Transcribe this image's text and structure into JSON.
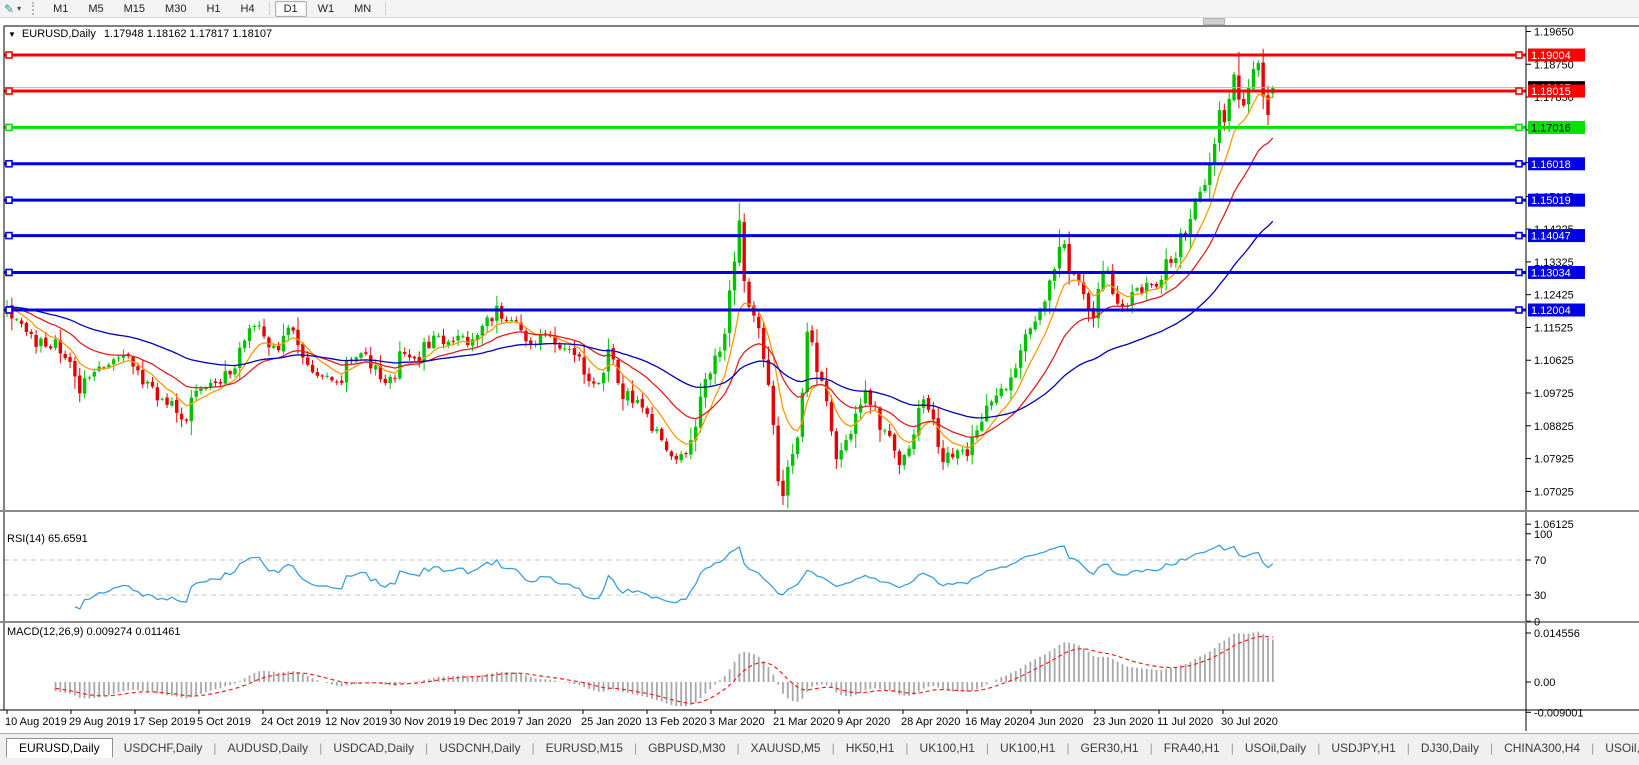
{
  "toolbar": {
    "cursor_glyph": "✎",
    "dropdown_glyph": "▾",
    "timeframes": [
      "M1",
      "M5",
      "M15",
      "M30",
      "H1",
      "H4",
      "D1",
      "W1",
      "MN"
    ],
    "active_timeframe": "D1"
  },
  "chart": {
    "title_marker": "▼",
    "ohlc_text": "1.17948 1.18162 1.17817 1.18107"
  },
  "chart_data": {
    "type": "candlestick",
    "symbol": "EURUSD",
    "timeframe": "Daily",
    "title": "EURUSD,Daily",
    "ohlc_current": {
      "open": "1.17948",
      "high": "1.18162",
      "low": "1.17817",
      "close": "1.18107"
    },
    "x_axis_labels": [
      "10 Aug 2019",
      "29 Aug 2019",
      "17 Sep 2019",
      "5 Oct 2019",
      "24 Oct 2019",
      "12 Nov 2019",
      "30 Nov 2019",
      "19 Dec 2019",
      "7 Jan 2020",
      "25 Jan 2020",
      "13 Feb 2020",
      "3 Mar 2020",
      "21 Mar 2020",
      "9 Apr 2020",
      "28 Apr 2020",
      "16 May 2020",
      "4 Jun 2020",
      "23 Jun 2020",
      "11 Jul 2020",
      "30 Jul 2020"
    ],
    "y_axis_ticks": [
      {
        "label": "1.19650",
        "value": 1.1965
      },
      {
        "label": "1.18750",
        "value": 1.1875
      },
      {
        "label": "1.17850",
        "value": 1.1785
      },
      {
        "label": "1.16950",
        "value": 1.1695
      },
      {
        "label": "1.16050",
        "value": 1.1605
      },
      {
        "label": "1.15125",
        "value": 1.15125
      },
      {
        "label": "1.14225",
        "value": 1.14225
      },
      {
        "label": "1.13325",
        "value": 1.13325
      },
      {
        "label": "1.12425",
        "value": 1.12425
      },
      {
        "label": "1.11525",
        "value": 1.11525
      },
      {
        "label": "1.10625",
        "value": 1.10625
      },
      {
        "label": "1.09725",
        "value": 1.09725
      },
      {
        "label": "1.08825",
        "value": 1.08825
      },
      {
        "label": "1.07925",
        "value": 1.07925
      },
      {
        "label": "1.07025",
        "value": 1.07025
      },
      {
        "label": "1.06125",
        "value": 1.06125
      }
    ],
    "horizontal_lines": [
      {
        "label": "1.19004",
        "value": 1.19004,
        "color": "#ff0000",
        "text_color": "#ffffff"
      },
      {
        "label": "1.18015",
        "value": 1.18015,
        "color": "#ff0000",
        "text_color": "#ffffff"
      },
      {
        "label": "1.17016",
        "value": 1.17016,
        "color": "#00e400",
        "text_color": "#000000"
      },
      {
        "label": "1.16018",
        "value": 1.16018,
        "color": "#0000e6",
        "text_color": "#ffffff"
      },
      {
        "label": "1.15019",
        "value": 1.15019,
        "color": "#0000e6",
        "text_color": "#ffffff"
      },
      {
        "label": "1.14047",
        "value": 1.14047,
        "color": "#0000e6",
        "text_color": "#ffffff"
      },
      {
        "label": "1.13034",
        "value": 1.13034,
        "color": "#0000e6",
        "text_color": "#ffffff"
      },
      {
        "label": "1.12004",
        "value": 1.12004,
        "color": "#0000e6",
        "text_color": "#ffffff"
      }
    ],
    "current_price": {
      "label": "1.18107",
      "value": 1.18107,
      "line_color": "#b4b4b4",
      "badge_color": "#000000"
    },
    "candles": {
      "count": 262,
      "close_waypoints": [
        [
          0,
          1.121
        ],
        [
          2,
          1.1175
        ],
        [
          4,
          1.114
        ],
        [
          8,
          1.11
        ],
        [
          10,
          1.112
        ],
        [
          13,
          1.1058
        ],
        [
          15,
          1.0972
        ],
        [
          18,
          1.103
        ],
        [
          23,
          1.107
        ],
        [
          26,
          1.1045
        ],
        [
          30,
          1.099
        ],
        [
          33,
          1.094
        ],
        [
          36,
          1.09
        ],
        [
          38,
          1.096
        ],
        [
          43,
          1.1
        ],
        [
          47,
          1.104
        ],
        [
          50,
          1.115
        ],
        [
          53,
          1.1128
        ],
        [
          56,
          1.109
        ],
        [
          58,
          1.1152
        ],
        [
          61,
          1.107
        ],
        [
          64,
          1.102
        ],
        [
          68,
          1.1003
        ],
        [
          71,
          1.106
        ],
        [
          74,
          1.108
        ],
        [
          77,
          1.101
        ],
        [
          79,
          1.1017
        ],
        [
          82,
          1.108
        ],
        [
          85,
          1.106
        ],
        [
          88,
          1.113
        ],
        [
          92,
          1.1115
        ],
        [
          96,
          1.112
        ],
        [
          99,
          1.118
        ],
        [
          101,
          1.1212
        ],
        [
          103,
          1.1172
        ],
        [
          107,
          1.1115
        ],
        [
          111,
          1.113
        ],
        [
          115,
          1.1095
        ],
        [
          119,
          1.1023
        ],
        [
          122,
          1.1
        ],
        [
          124,
          1.1093
        ],
        [
          126,
          1.1
        ],
        [
          129,
          1.0945
        ],
        [
          132,
          1.0915
        ],
        [
          135,
          1.0843
        ],
        [
          138,
          1.079
        ],
        [
          140,
          1.0805
        ],
        [
          142,
          1.088
        ],
        [
          145,
          1.1026
        ],
        [
          148,
          1.1135
        ],
        [
          151,
          1.1446
        ],
        [
          152,
          1.128
        ],
        [
          154,
          1.1185
        ],
        [
          156,
          1.1065
        ],
        [
          157,
          1.0995
        ],
        [
          159,
          1.073
        ],
        [
          160,
          1.069
        ],
        [
          161,
          1.077
        ],
        [
          163,
          1.085
        ],
        [
          165,
          1.1141
        ],
        [
          167,
          1.103
        ],
        [
          169,
          1.095
        ],
        [
          171,
          1.0791
        ],
        [
          174,
          1.086
        ],
        [
          177,
          1.098
        ],
        [
          179,
          1.0935
        ],
        [
          181,
          1.087
        ],
        [
          184,
          1.0775
        ],
        [
          186,
          1.082
        ],
        [
          189,
          1.0955
        ],
        [
          191,
          1.09
        ],
        [
          193,
          1.0783
        ],
        [
          196,
          1.0815
        ],
        [
          198,
          1.08
        ],
        [
          200,
          1.087
        ],
        [
          203,
          1.0949
        ],
        [
          206,
          1.0983
        ],
        [
          208,
          1.104
        ],
        [
          210,
          1.1134
        ],
        [
          213,
          1.12
        ],
        [
          217,
          1.1374
        ],
        [
          220,
          1.13
        ],
        [
          222,
          1.1244
        ],
        [
          224,
          1.1177
        ],
        [
          226,
          1.1308
        ],
        [
          229,
          1.1218
        ],
        [
          232,
          1.125
        ],
        [
          234,
          1.1248
        ],
        [
          236,
          1.127
        ],
        [
          238,
          1.1283
        ],
        [
          240,
          1.133
        ],
        [
          242,
          1.1412
        ],
        [
          244,
          1.145
        ],
        [
          246,
          1.1525
        ],
        [
          248,
          1.16
        ],
        [
          249,
          1.1656
        ],
        [
          250,
          1.1749
        ],
        [
          251,
          1.1716
        ],
        [
          252,
          1.178
        ],
        [
          253,
          1.1847
        ],
        [
          254,
          1.1778
        ],
        [
          255,
          1.1762
        ],
        [
          256,
          1.181
        ],
        [
          257,
          1.1862
        ],
        [
          258,
          1.1878
        ],
        [
          259,
          1.1787
        ],
        [
          260,
          1.1736
        ],
        [
          261,
          1.18107
        ]
      ],
      "forced_extremes": [
        {
          "i": 36,
          "low": 1.0879
        },
        {
          "i": 101,
          "high": 1.1239
        },
        {
          "i": 138,
          "low": 1.0778
        },
        {
          "i": 151,
          "high": 1.1495
        },
        {
          "i": 160,
          "low": 1.0665
        },
        {
          "i": 217,
          "high": 1.1422
        },
        {
          "i": 254,
          "high": 1.1909
        }
      ],
      "last_candle": {
        "o": 1.17948,
        "h": 1.18162,
        "l": 1.17817,
        "c": 1.18107
      }
    },
    "moving_averages": [
      {
        "period": 8,
        "color": "#ff9900"
      },
      {
        "period": 21,
        "color": "#e02020"
      },
      {
        "period": 55,
        "color": "#0000bb"
      }
    ],
    "indicators": {
      "rsi": {
        "label": "RSI(14) 65.6591",
        "period": 14,
        "current": 65.6591,
        "levels": [
          70,
          30
        ],
        "axis": [
          {
            "label": "100",
            "value": 100
          },
          {
            "label": "70",
            "value": 70
          },
          {
            "label": "30",
            "value": 30
          },
          {
            "label": "0",
            "value": 0
          }
        ],
        "color": "#3a9fdc"
      },
      "macd": {
        "label": "MACD(12,26,9) 0.009274 0.011461",
        "fast": 12,
        "slow": 26,
        "signal": 9,
        "current_main": 0.009274,
        "current_signal": 0.011461,
        "axis": [
          {
            "label": "0.014556",
            "value": 0.014556
          },
          {
            "label": "0.00",
            "value": 0
          },
          {
            "label": "-0.009001",
            "value": -0.009001
          }
        ],
        "histogram_color": "#a8a8a8",
        "signal_color": "#ff2020"
      }
    },
    "colors": {
      "up": "#00c200",
      "down": "#e60000",
      "background": "#ffffff"
    }
  },
  "tabs": {
    "items": [
      "EURUSD,Daily",
      "USDCHF,Daily",
      "AUDUSD,Daily",
      "USDCAD,Daily",
      "USDCNH,Daily",
      "EURUSD,M15",
      "GBPUSD,M30",
      "XAUUSD,M5",
      "HK50,H1",
      "UK100,H1",
      "UK100,H1",
      "GER30,H1",
      "FRA40,H1",
      "USOil,Daily",
      "USDJPY,H1",
      "DJ30,Daily",
      "CHINA300,H4",
      "USOil,H"
    ],
    "active_index": 0,
    "scroll_left_glyph": "◄",
    "scroll_right_glyph": "►"
  }
}
